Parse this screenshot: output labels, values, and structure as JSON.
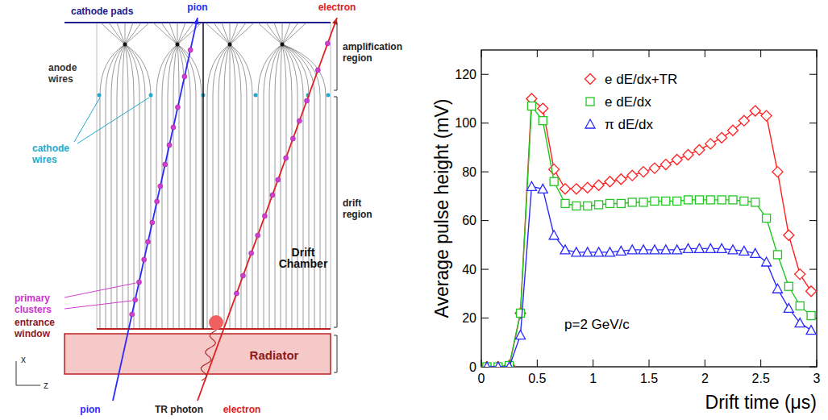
{
  "diagram": {
    "cathode_pads": "cathode pads",
    "pion_top": "pion",
    "electron_top": "electron",
    "amplification_region": "amplification region",
    "anode_wires": "anode wires",
    "cathode_wires": "cathode wires",
    "drift_region": "drift region",
    "primary_clusters": "primary clusters",
    "drift_chamber": "Drift Chamber",
    "entrance_window": "entrance window",
    "radiator": "Radiator",
    "pion_bottom": "pion",
    "tr_photon": "TR photon",
    "electron_bottom": "electron",
    "axis_x": "x",
    "axis_z": "z"
  },
  "chart_data": {
    "type": "line",
    "x_label": "Drift time (μs)",
    "y_label": "Average pulse height (mV)",
    "annotations": [
      "p=2 GeV/c"
    ],
    "x": [
      0.05,
      0.15,
      0.25,
      0.35,
      0.45,
      0.55,
      0.65,
      0.75,
      0.85,
      0.95,
      1.05,
      1.15,
      1.25,
      1.35,
      1.45,
      1.55,
      1.65,
      1.75,
      1.85,
      1.95,
      2.05,
      2.15,
      2.25,
      2.35,
      2.45,
      2.55,
      2.65,
      2.75,
      2.85,
      2.95
    ],
    "series": [
      {
        "name": "e dE/dx+TR",
        "color": "#ff2020",
        "marker": "diamond",
        "values": [
          0,
          0,
          0.5,
          22,
          110,
          106,
          81,
          73,
          73,
          73.5,
          74.5,
          76,
          77,
          78.5,
          80,
          81.5,
          83,
          85,
          87,
          89,
          91.5,
          94,
          97,
          101,
          105,
          103,
          80,
          54,
          38,
          31
        ]
      },
      {
        "name": "e dE/dx",
        "color": "#20c820",
        "marker": "square",
        "values": [
          0,
          0,
          0.5,
          22,
          107,
          101,
          76,
          67,
          66,
          66,
          66.5,
          67,
          67,
          67.5,
          67.5,
          68,
          68,
          68,
          68.5,
          68.5,
          68.5,
          68.5,
          68.5,
          68,
          67.5,
          61,
          46,
          33,
          25,
          21
        ]
      },
      {
        "name": "π dE/dx",
        "color": "#2a2aff",
        "marker": "triangle",
        "values": [
          0,
          0,
          0,
          13,
          74,
          73,
          54,
          48,
          47,
          47,
          47,
          47,
          47.5,
          48,
          48,
          48,
          48,
          48,
          48.5,
          48.5,
          48.5,
          48.5,
          48,
          47.5,
          46.5,
          43,
          32,
          24,
          18,
          15
        ]
      }
    ],
    "xlim": [
      0,
      3
    ],
    "ylim": [
      0,
      130
    ],
    "xticks": [
      0,
      0.5,
      1,
      1.5,
      2,
      2.5,
      3
    ],
    "yticks": [
      0,
      20,
      40,
      60,
      80,
      100,
      120
    ],
    "grid": false,
    "legend": "upper left"
  }
}
